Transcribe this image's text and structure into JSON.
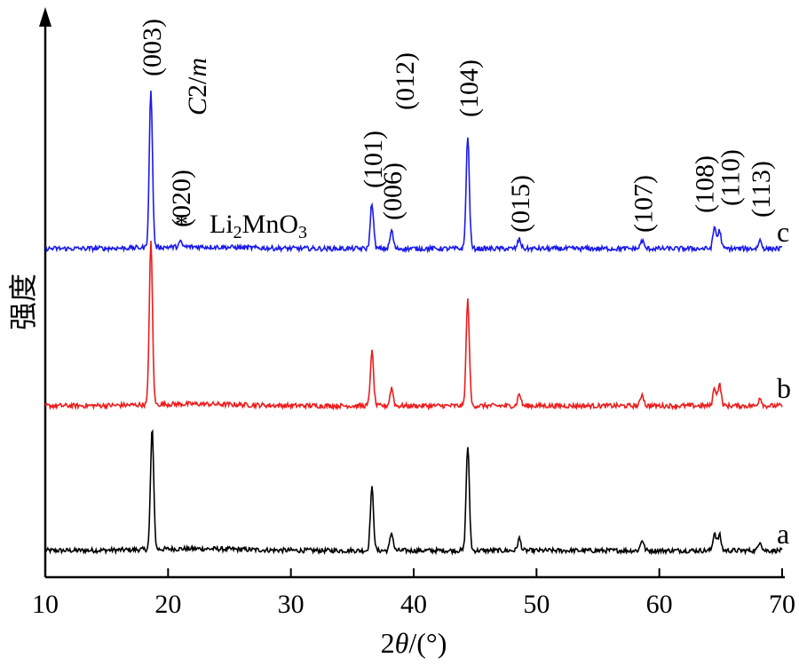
{
  "chart_data": {
    "type": "line",
    "xlabel_parts": [
      "2",
      "θ",
      "/(°)"
    ],
    "ylabel": "强度",
    "xlim": [
      10,
      70
    ],
    "xticks": [
      10,
      20,
      30,
      40,
      50,
      60,
      70
    ],
    "grid": false,
    "series": [
      {
        "name": "a",
        "color": "#000000",
        "offset": 0,
        "peaks": [
          {
            "x": 18.7,
            "h": 1.0
          },
          {
            "x": 36.6,
            "h": 0.52
          },
          {
            "x": 38.2,
            "h": 0.15
          },
          {
            "x": 44.4,
            "h": 0.87
          },
          {
            "x": 48.6,
            "h": 0.1
          },
          {
            "x": 58.6,
            "h": 0.09
          },
          {
            "x": 64.5,
            "h": 0.15
          },
          {
            "x": 64.9,
            "h": 0.13
          },
          {
            "x": 68.2,
            "h": 0.08
          }
        ]
      },
      {
        "name": "b",
        "color": "#ee1c1c",
        "offset": 1,
        "peaks": [
          {
            "x": 18.6,
            "h": 1.35
          },
          {
            "x": 36.6,
            "h": 0.45
          },
          {
            "x": 38.2,
            "h": 0.15
          },
          {
            "x": 44.4,
            "h": 0.88
          },
          {
            "x": 48.6,
            "h": 0.1
          },
          {
            "x": 58.6,
            "h": 0.1
          },
          {
            "x": 64.5,
            "h": 0.15
          },
          {
            "x": 64.9,
            "h": 0.18
          },
          {
            "x": 68.2,
            "h": 0.07
          }
        ]
      },
      {
        "name": "c",
        "color": "#1a1aee",
        "offset": 2,
        "peaks": [
          {
            "x": 18.6,
            "h": 1.3
          },
          {
            "x": 21.0,
            "h": 0.04
          },
          {
            "x": 36.6,
            "h": 0.38
          },
          {
            "x": 38.2,
            "h": 0.15
          },
          {
            "x": 44.4,
            "h": 0.93
          },
          {
            "x": 48.6,
            "h": 0.08
          },
          {
            "x": 58.6,
            "h": 0.07
          },
          {
            "x": 64.5,
            "h": 0.18
          },
          {
            "x": 64.9,
            "h": 0.15
          },
          {
            "x": 68.2,
            "h": 0.07
          }
        ]
      }
    ],
    "peak_labels": [
      {
        "text": "(003)",
        "x": 18.6
      },
      {
        "text": "(020)",
        "x": 21.0
      },
      {
        "text": "(101)",
        "x": 36.6
      },
      {
        "text": "(006)",
        "x": 38.2
      },
      {
        "text": "(012)",
        "x": 39.2
      },
      {
        "text": "(104)",
        "x": 44.4
      },
      {
        "text": "(015)",
        "x": 48.6
      },
      {
        "text": "(107)",
        "x": 58.6
      },
      {
        "text": "(108)",
        "x": 63.6
      },
      {
        "text": "(110)",
        "x": 65.7
      },
      {
        "text": "(113)",
        "x": 68.2
      }
    ],
    "annotations": {
      "phase_italic": "C",
      "phase_num": "2/",
      "phase_m": "m",
      "star": "*",
      "compound_li": "Li",
      "compound_sub1": "2",
      "compound_mno": "MnO",
      "compound_sub2": "3"
    }
  }
}
